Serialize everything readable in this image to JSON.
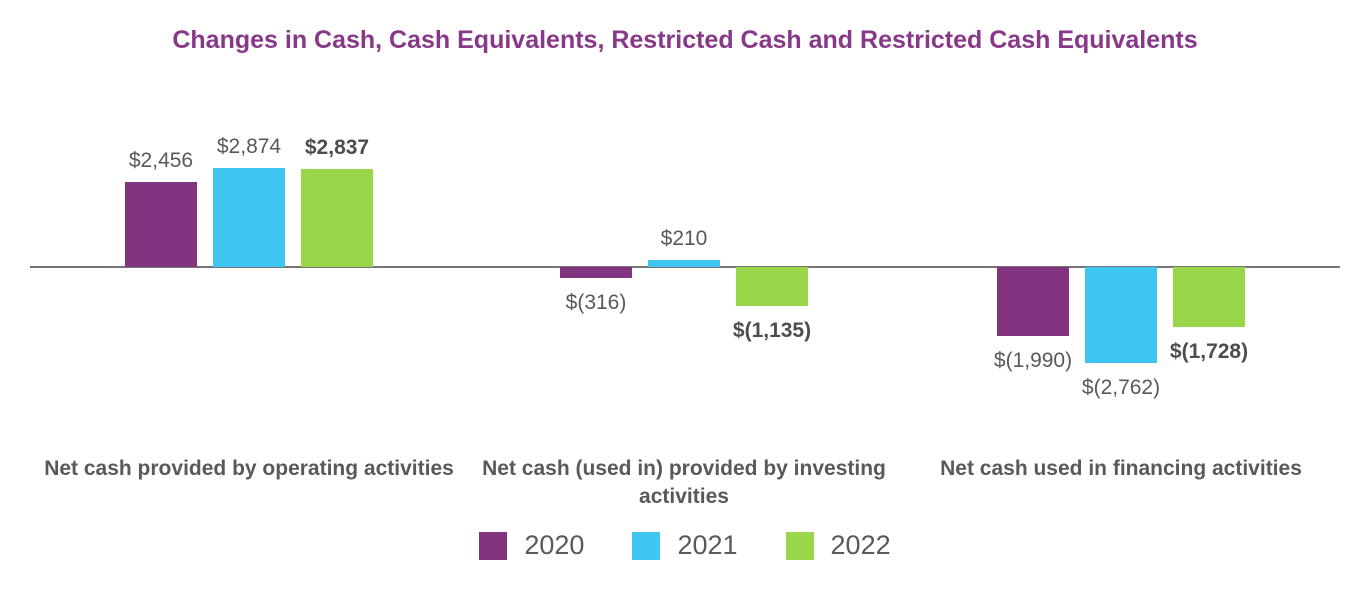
{
  "chart_data": {
    "type": "bar",
    "title": "Changes in Cash, Cash Equivalents, Restricted Cash and Restricted Cash Equivalents",
    "categories": [
      "Net cash provided by operating activities",
      "Net cash (used in) provided by investing activities",
      "Net cash used in financing activities"
    ],
    "series": [
      {
        "name": "2020",
        "color": "#833480",
        "values": [
          2456,
          -316,
          -1990
        ],
        "value_labels": [
          "$2,456",
          "$(316)",
          "$(1,990)"
        ],
        "bold_labels": false
      },
      {
        "name": "2021",
        "color": "#3DC6F0",
        "values": [
          2874,
          210,
          -2762
        ],
        "value_labels": [
          "$2,874",
          "$210",
          "$(2,762)"
        ],
        "bold_labels": false
      },
      {
        "name": "2022",
        "color": "#9AD64A",
        "values": [
          2837,
          -1135,
          -1728
        ],
        "value_labels": [
          "$2,837",
          "$(1,135)",
          "$(1,728)"
        ],
        "bold_labels": true
      }
    ],
    "ylim": [
      -3000,
      3000
    ],
    "grid": false,
    "legend_position": "bottom",
    "styles": {
      "title_color": "#883889",
      "label_color": "#595959",
      "axis_color": "#757575",
      "background": "#FFFFFF"
    }
  }
}
